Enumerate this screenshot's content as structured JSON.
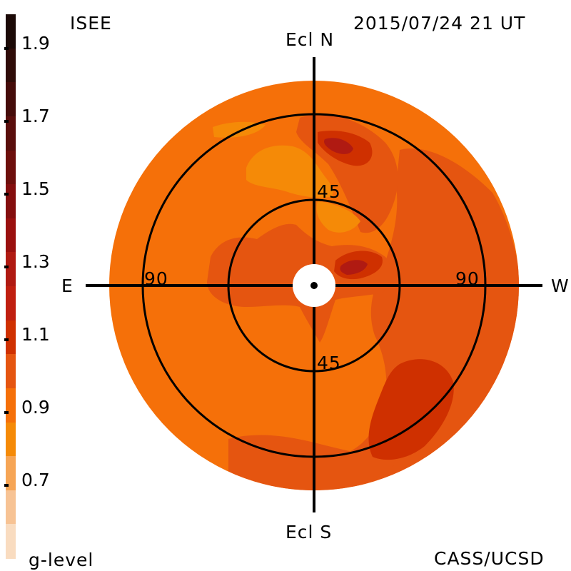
{
  "header": {
    "source_label": "ISEE",
    "timestamp": "2015/07/24 21 UT"
  },
  "footer": {
    "colorbar_label": "g-level",
    "credit": "CASS/UCSD"
  },
  "map": {
    "projection": "polar sky map (ecliptic)",
    "directions": {
      "north": "Ecl N",
      "south": "Ecl S",
      "east": "E",
      "west": "W"
    },
    "ring_labels": [
      {
        "text": "45",
        "where": "north"
      },
      {
        "text": "45",
        "where": "south"
      },
      {
        "text": "90",
        "where": "east"
      },
      {
        "text": "90",
        "where": "west"
      }
    ],
    "background_color": "#f57009",
    "colors": {
      "level_0_9": "#f58a07",
      "level_1_0": "#f57009",
      "level_1_1": "#e55510",
      "level_1_2": "#cf3000",
      "level_1_4": "#b01a12"
    }
  },
  "colorbar": {
    "title": "g-level",
    "tick_labels": [
      "1.9",
      "1.7",
      "1.5",
      "1.3",
      "1.1",
      "0.9",
      "0.7"
    ],
    "segments": [
      {
        "color": "#1c0a07"
      },
      {
        "color": "#2f0c08"
      },
      {
        "color": "#450c0a"
      },
      {
        "color": "#5a0e0c"
      },
      {
        "color": "#6d0f0c"
      },
      {
        "color": "#840e0e"
      },
      {
        "color": "#9a100f"
      },
      {
        "color": "#b01a12"
      },
      {
        "color": "#c01f10"
      },
      {
        "color": "#cf3000"
      },
      {
        "color": "#e55510"
      },
      {
        "color": "#f57009"
      },
      {
        "color": "#f58a07"
      },
      {
        "color": "#f6a555"
      },
      {
        "color": "#f7c394"
      },
      {
        "color": "#f9dcc0"
      }
    ]
  }
}
